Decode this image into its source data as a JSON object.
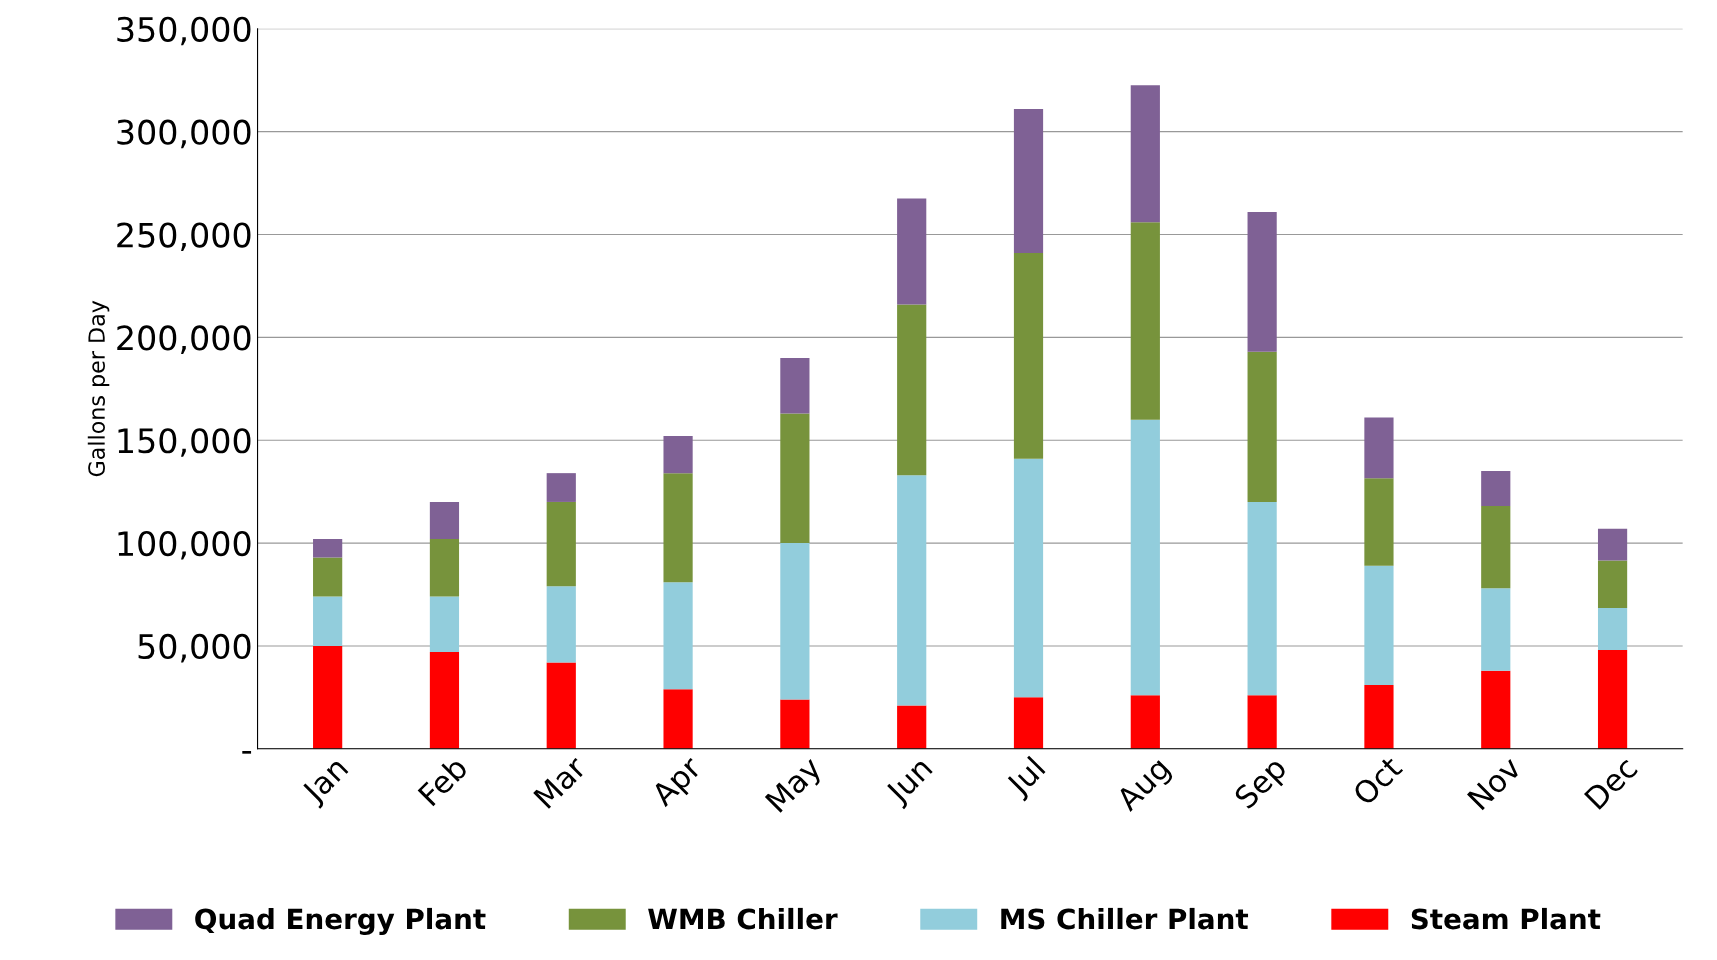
{
  "chart_data": {
    "type": "bar",
    "stacked": true,
    "ylabel": "Gallons per Day",
    "categories": [
      "Jan",
      "Feb",
      "Mar",
      "Apr",
      "May",
      "Jun",
      "Jul",
      "Aug",
      "Sep",
      "Oct",
      "Nov",
      "Dec"
    ],
    "series": [
      {
        "name": "Steam Plant",
        "color": "#ff0000",
        "values": [
          50000,
          47000,
          42000,
          29000,
          24000,
          21000,
          25000,
          26000,
          26000,
          31000,
          38000,
          48000
        ]
      },
      {
        "name": "MS Chiller Plant",
        "color": "#92cddc",
        "values": [
          24000,
          27000,
          37000,
          52000,
          76000,
          112000,
          116000,
          134000,
          94000,
          58000,
          40000,
          20500
        ]
      },
      {
        "name": "WMB Chiller",
        "color": "#77933c",
        "values": [
          19000,
          28000,
          41000,
          53000,
          63000,
          83000,
          100000,
          96000,
          73000,
          42500,
          40000,
          23000
        ]
      },
      {
        "name": "Quad Energy Plant",
        "color": "#7f6195",
        "values": [
          9000,
          18000,
          14000,
          18000,
          27000,
          51500,
          70000,
          66500,
          68000,
          29500,
          17000,
          15500
        ]
      }
    ],
    "ylim": [
      0,
      350000
    ],
    "yticks": [
      {
        "value": 0,
        "label": "-"
      },
      {
        "value": 50000,
        "label": "50,000"
      },
      {
        "value": 100000,
        "label": "100,000"
      },
      {
        "value": 150000,
        "label": "150,000"
      },
      {
        "value": 200000,
        "label": "200,000"
      },
      {
        "value": 250000,
        "label": "250,000"
      },
      {
        "value": 300000,
        "label": "300,000"
      },
      {
        "value": 350000,
        "label": "350,000"
      }
    ],
    "grid": "y",
    "legend": "bottom"
  }
}
